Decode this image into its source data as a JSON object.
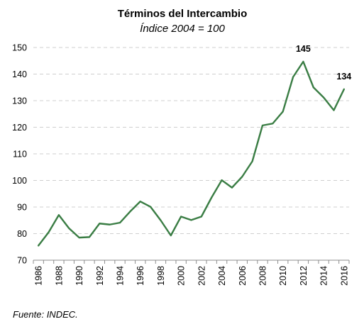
{
  "chart_data": {
    "type": "line",
    "title": "Términos del Intercambio",
    "subtitle": "Índice 2004 = 100",
    "xlabel": "",
    "ylabel": "",
    "ylim": [
      70,
      150
    ],
    "yticks": [
      70,
      80,
      90,
      100,
      110,
      120,
      130,
      140,
      150
    ],
    "xticks": [
      1986,
      1988,
      1990,
      1992,
      1994,
      1996,
      1998,
      2000,
      2002,
      2004,
      2006,
      2008,
      2010,
      2012,
      2014,
      2016
    ],
    "grid": "horizontal dashed",
    "legend": "none",
    "line_color": "#3a7d44",
    "series": [
      {
        "x": [
          1986,
          1987,
          1988,
          1989,
          1990,
          1991,
          1992,
          1993,
          1994,
          1995,
          1996,
          1997,
          1998,
          1999,
          2000,
          2001,
          2002,
          2003,
          2004,
          2005,
          2006,
          2007,
          2008,
          2009,
          2010,
          2011,
          2012,
          2013,
          2014,
          2015,
          2016
        ],
        "values": [
          75.5,
          80.5,
          87,
          82,
          78.5,
          78.7,
          83.8,
          83.4,
          84.1,
          88.3,
          92.1,
          90.1,
          85,
          79.3,
          86.4,
          85.1,
          86.4,
          93.6,
          100.1,
          97.3,
          101.4,
          107.2,
          120.7,
          121.4,
          125.9,
          138.9,
          144.7,
          135,
          131.2,
          126.4,
          134.3
        ]
      }
    ],
    "annotations": [
      {
        "x": 2012,
        "y": 144.7,
        "text": "145"
      },
      {
        "x": 2016,
        "y": 134.3,
        "text": "134"
      }
    ]
  },
  "source_note": "Fuente: INDEC."
}
